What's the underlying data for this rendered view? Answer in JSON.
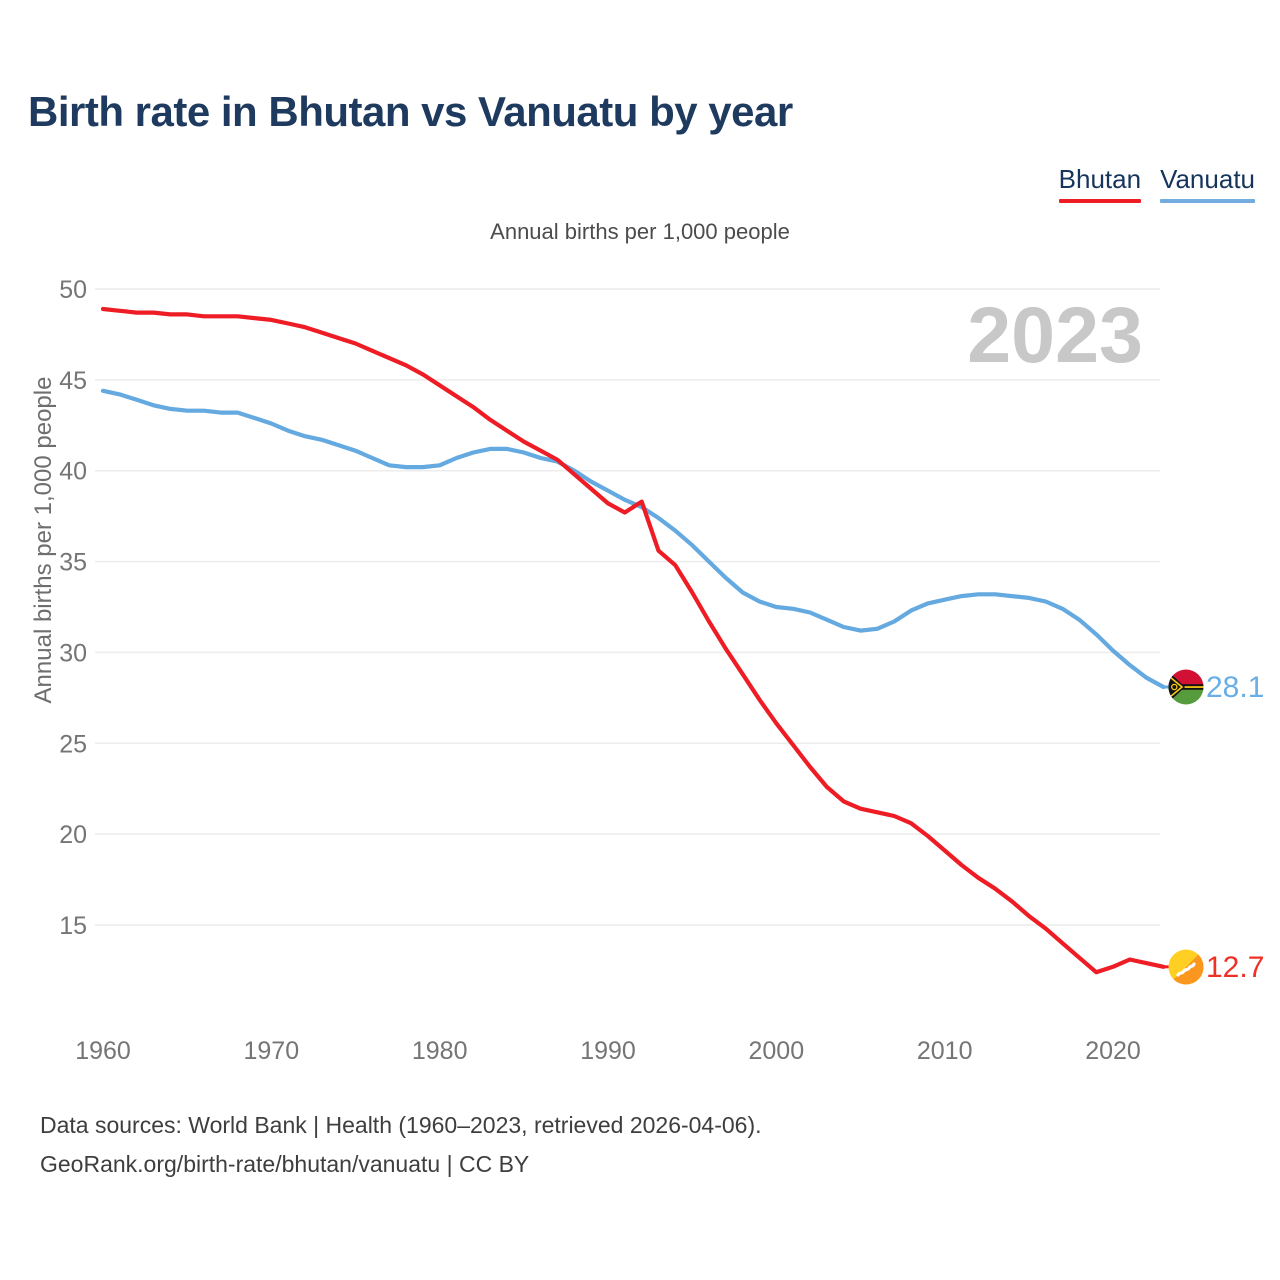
{
  "title": "Birth rate in Bhutan vs Vanuatu by year",
  "subtitle": "Annual births per 1,000 people",
  "watermark": "2023",
  "legend": {
    "items": [
      {
        "label": "Bhutan",
        "color": "#ee1c24"
      },
      {
        "label": "Vanuatu",
        "color": "#74ace0"
      }
    ]
  },
  "y_axis": {
    "title": "Annual births per 1,000 people"
  },
  "footer": {
    "line1": "Data sources: World Bank | Health (1960–2023, retrieved 2026-04-06).",
    "line2": "GeoRank.org/birth-rate/bhutan/vanuatu | CC BY"
  },
  "chart_data": {
    "type": "line",
    "title": "Birth rate in Bhutan vs Vanuatu by year",
    "subtitle": "Annual births per 1,000 people",
    "ylabel": "Annual births per 1,000 people",
    "xlabel": "",
    "x_start_year": 1960,
    "x_end_year": 2023,
    "x_ticks": [
      1960,
      1970,
      1980,
      1990,
      2000,
      2010,
      2020
    ],
    "y_ticks": [
      15,
      20,
      25,
      30,
      35,
      40,
      45,
      50
    ],
    "ylim": [
      12,
      50
    ],
    "xlim": [
      1960,
      2023
    ],
    "grid": "horizontal",
    "legend_position": "top-right",
    "watermark_year": "2023",
    "series": [
      {
        "name": "Bhutan",
        "color": "#ee1c24",
        "end_label": "12.7",
        "flag": "bhutan-flag",
        "values": [
          48.9,
          48.8,
          48.7,
          48.7,
          48.6,
          48.6,
          48.5,
          48.5,
          48.5,
          48.4,
          48.3,
          48.1,
          47.9,
          47.6,
          47.3,
          47.0,
          46.6,
          46.2,
          45.8,
          45.3,
          44.7,
          44.1,
          43.5,
          42.8,
          42.2,
          41.6,
          41.1,
          40.6,
          39.8,
          39.0,
          38.2,
          37.7,
          38.3,
          35.6,
          34.8,
          33.3,
          31.7,
          30.2,
          28.8,
          27.4,
          26.1,
          24.9,
          23.7,
          22.6,
          21.8,
          21.4,
          21.2,
          21.0,
          20.6,
          19.9,
          19.1,
          18.3,
          17.6,
          17.0,
          16.3,
          15.5,
          14.8,
          14.0,
          13.2,
          12.4,
          12.7,
          13.1,
          12.9,
          12.7
        ]
      },
      {
        "name": "Vanuatu",
        "color": "#64a9e0",
        "end_label": "28.1",
        "flag": "vanuatu-flag",
        "values": [
          44.4,
          44.2,
          43.9,
          43.6,
          43.4,
          43.3,
          43.3,
          43.2,
          43.2,
          42.9,
          42.6,
          42.2,
          41.9,
          41.7,
          41.4,
          41.1,
          40.7,
          40.3,
          40.2,
          40.2,
          40.3,
          40.7,
          41.0,
          41.2,
          41.2,
          41.0,
          40.7,
          40.5,
          40.0,
          39.4,
          38.9,
          38.4,
          38.0,
          37.4,
          36.7,
          35.9,
          35.0,
          34.1,
          33.3,
          32.8,
          32.5,
          32.4,
          32.2,
          31.8,
          31.4,
          31.2,
          31.3,
          31.7,
          32.3,
          32.7,
          32.9,
          33.1,
          33.2,
          33.2,
          33.1,
          33.0,
          32.8,
          32.4,
          31.8,
          31.0,
          30.1,
          29.3,
          28.6,
          28.1
        ]
      }
    ]
  }
}
